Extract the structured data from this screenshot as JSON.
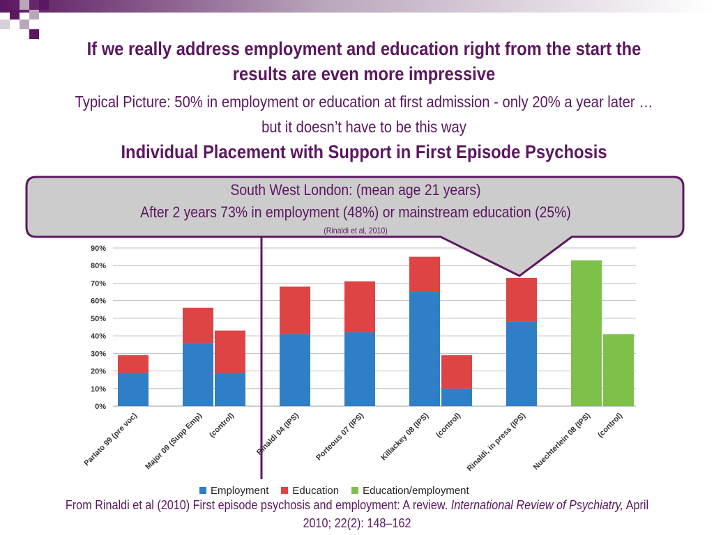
{
  "slide": {
    "title": "If we really address employment and education right from the start the results are even more impressive",
    "subtitle": "Typical Picture: 50% in employment or education at first admission - only 20% a year later …  but it doesn’t have to be this way",
    "subtitle2": "Individual Placement with Support in First Episode Psychosis"
  },
  "callout": {
    "line1": "South West London: (mean age 21 years)",
    "line2": "After 2 years 73% in employment (48%) or mainstream education (25%)",
    "line3": "(Rinaldi et al, 2010)",
    "fill": "#cccccc",
    "border": "#5b1760"
  },
  "footer": {
    "text_plain": "From Rinaldi et al (2010) First episode psychosis and employment: A review. ",
    "text_italic1": "International Review of Psychiatry,",
    "text_plain2": " April 2010; 22(2): 148–162"
  },
  "chart_data": {
    "type": "bar",
    "stacked": true,
    "categories": [
      "Parlato 99 (pre voc)",
      "Major 09 (Supp Emp)",
      "(control)",
      "Rinaldi 04 (IPS)",
      "Porteous 07 (IPS)",
      "Killackey 08 (IPS)",
      "(control)",
      "Rinaldi, in press (IPS)",
      "Nuechterlein 08 (IPS)",
      "(control)"
    ],
    "series": [
      {
        "name": "Employment",
        "color": "#2f7fc6",
        "values": [
          19,
          36,
          19,
          41,
          42,
          65,
          10,
          48,
          0,
          0
        ]
      },
      {
        "name": "Education",
        "color": "#de4444",
        "values": [
          10,
          20,
          24,
          27,
          29,
          20,
          19,
          25,
          0,
          0
        ]
      },
      {
        "name": "Education/employment",
        "color": "#7dc14b",
        "values": [
          0,
          0,
          0,
          0,
          0,
          0,
          0,
          0,
          83,
          41
        ]
      }
    ],
    "ylim": [
      0,
      90
    ],
    "yticks": [
      "0%",
      "10%",
      "20%",
      "30%",
      "40%",
      "50%",
      "60%",
      "70%",
      "80%",
      "90%"
    ],
    "grid": true,
    "legend": "bottom"
  }
}
